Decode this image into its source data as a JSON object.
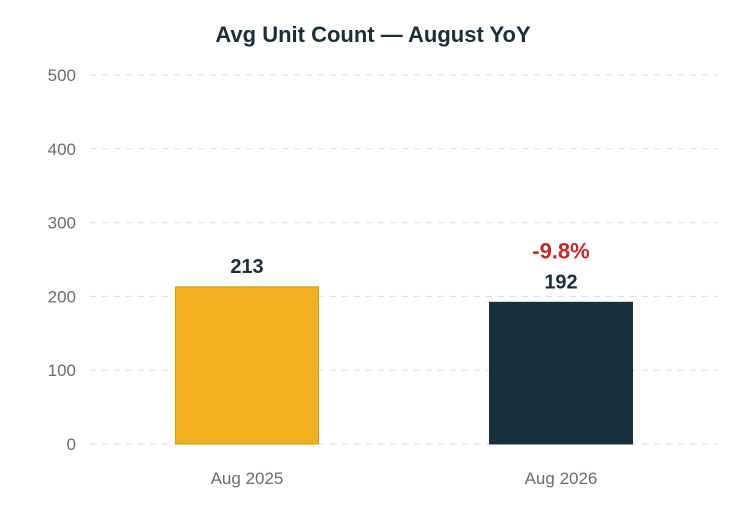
{
  "chart_data": {
    "type": "bar",
    "title": "Avg Unit Count — August YoY",
    "categories": [
      "Aug 2025",
      "Aug 2026"
    ],
    "values": [
      213,
      192
    ],
    "value_labels": [
      "213",
      "192"
    ],
    "bar_colors": [
      "#f0b020",
      "#17303b"
    ],
    "bar_edge_colors": [
      "#d99a14",
      "#17303b"
    ],
    "change_label": "-9.8%",
    "change_color": "#c62828",
    "ylim": [
      0,
      500
    ],
    "yticks": [
      0,
      100,
      200,
      300,
      400,
      500
    ],
    "xlabel": "",
    "ylabel": "",
    "grid": true,
    "legend": "none"
  }
}
